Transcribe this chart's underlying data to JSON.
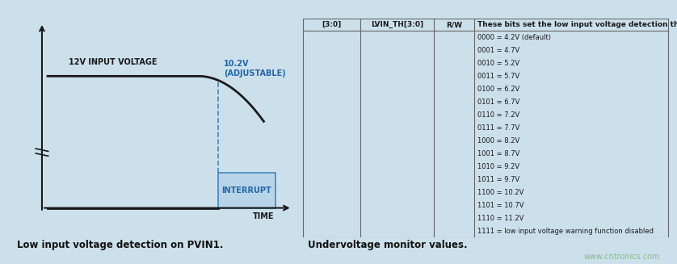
{
  "background_color": "#cce0ec",
  "title_left": "Low input voltage detection on PVIN1.",
  "title_right": "Undervoltage monitor values.",
  "watermark": "www.cntronics.com",
  "waveform_label": "12V INPUT VOLTAGE",
  "adjustable_label": "10.2V\n(ADJUSTABLE)",
  "interrupt_label": "INTERRUPT",
  "time_label": "TIME",
  "table_col1_header": "[3:0]",
  "table_col2_header": "LVIN_TH[3:0]",
  "table_col3_header": "R/W",
  "table_col4_header": "These bits set the low input voltage detection threshold.",
  "table_rows": [
    "0000 = 4.2V (default)",
    "0001 = 4.7V",
    "0010 = 5.2V",
    "0011 = 5.7V",
    "0100 = 6.2V",
    "0101 = 6.7V",
    "0110 = 7.2V",
    "0111 = 7.7V",
    "1000 = 8.2V",
    "1001 = 8.7V",
    "1010 = 9.2V",
    "1011 = 9.7V",
    "1100 = 10.2V",
    "1101 = 10.7V",
    "1110 = 11.2V",
    "1111 = low input voltage warning function disabled"
  ],
  "line_color": "#1a1a1a",
  "dashed_line_color": "#4488bb",
  "interrupt_box_edge": "#4488bb",
  "interrupt_box_face": "#b8d4e8",
  "interrupt_text_color": "#2266aa",
  "adjustable_text_color": "#2266aa",
  "table_line_color": "#666666",
  "watermark_color": "#88bb88",
  "caption_color": "#111111"
}
